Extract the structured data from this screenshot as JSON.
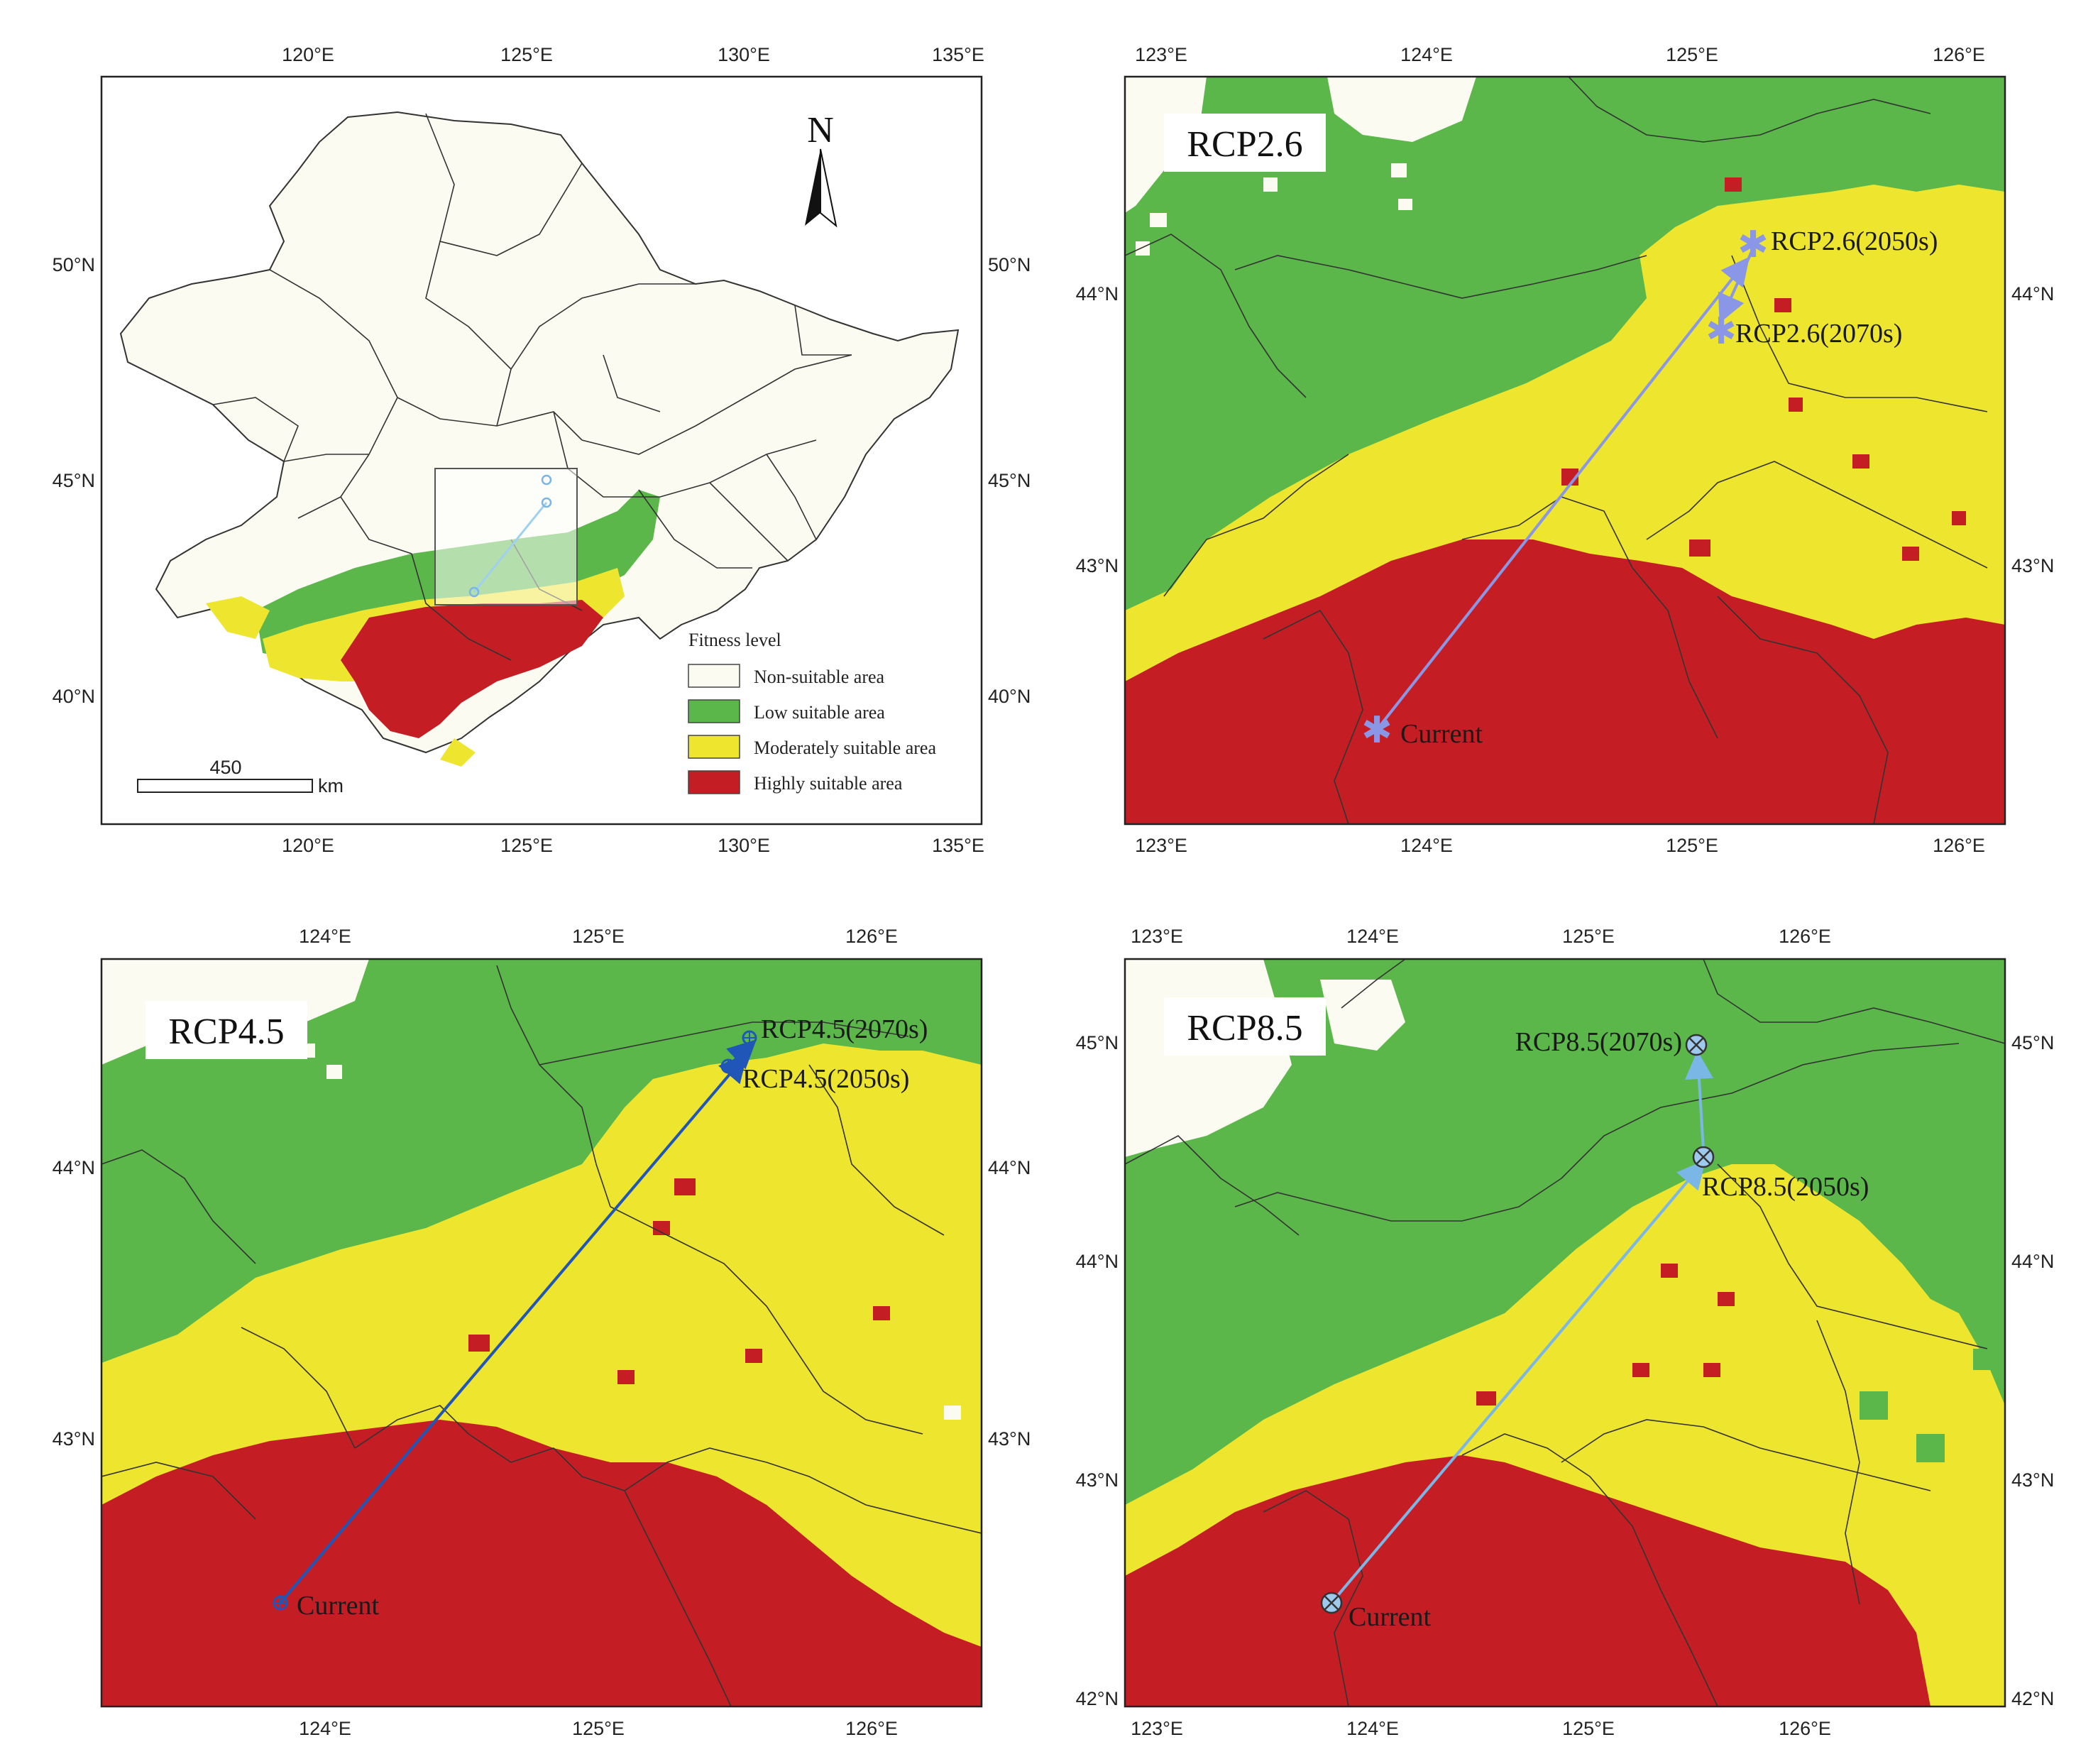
{
  "colors": {
    "non_suitable": "#fbfbf2",
    "low": "#5bb74a",
    "moderate": "#eee52e",
    "high": "#c41e24",
    "rcp26_arrow": "#8a97e6",
    "rcp45_arrow": "#1f56b8",
    "rcp85_arrow": "#7ab6e6"
  },
  "overview": {
    "north_label": "N",
    "x_ticks": [
      "120°E",
      "125°E",
      "130°E",
      "135°E"
    ],
    "y_ticks": [
      "50°N",
      "45°N",
      "40°N"
    ],
    "legend": {
      "title": "Fitness level",
      "items": [
        {
          "label": "Non-suitable area",
          "color": "#fbfbf2"
        },
        {
          "label": "Low suitable area",
          "color": "#5bb74a"
        },
        {
          "label": "Moderately suitable area",
          "color": "#eee52e"
        },
        {
          "label": "Highly suitable area",
          "color": "#c41e24"
        }
      ]
    },
    "scale": {
      "value": "450",
      "unit": "km"
    }
  },
  "panels": {
    "rcp26": {
      "title": "RCP2.6",
      "x_ticks": [
        "123°E",
        "124°E",
        "125°E",
        "126°E"
      ],
      "y_ticks": [
        "44°N",
        "43°N"
      ],
      "points": {
        "current": "Current",
        "p2050": "RCP2.6(2050s)",
        "p2070": "RCP2.6(2070s)"
      }
    },
    "rcp45": {
      "title": "RCP4.5",
      "x_ticks": [
        "124°E",
        "125°E",
        "126°E"
      ],
      "y_ticks": [
        "44°N",
        "43°N"
      ],
      "points": {
        "current": "Current",
        "p2050": "RCP4.5(2050s)",
        "p2070": "RCP4.5(2070s)"
      }
    },
    "rcp85": {
      "title": "RCP8.5",
      "x_ticks": [
        "123°E",
        "124°E",
        "125°E",
        "126°E"
      ],
      "y_ticks": [
        "45°N",
        "44°N",
        "43°N",
        "42°N"
      ],
      "points": {
        "current": "Current",
        "p2050": "RCP8.5(2050s)",
        "p2070": "RCP8.5(2070s)"
      }
    }
  }
}
